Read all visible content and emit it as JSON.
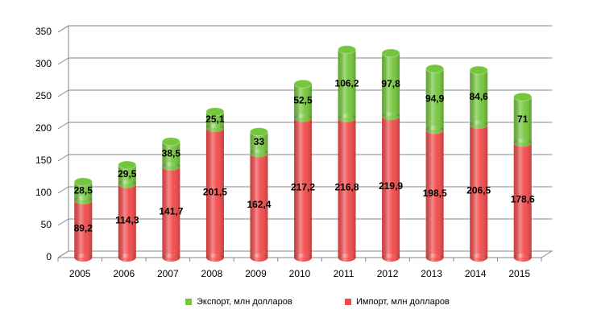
{
  "chart_data": {
    "type": "stacked-cylinder-bar",
    "categories": [
      "2005",
      "2006",
      "2007",
      "2008",
      "2009",
      "2010",
      "2011",
      "2012",
      "2013",
      "2014",
      "2015"
    ],
    "series": [
      {
        "name": "Импорт, млн долларов",
        "color": "#f24a4a",
        "values": [
          89.2,
          114.3,
          141.7,
          201.5,
          162.4,
          217.2,
          216.8,
          219.9,
          198.5,
          206.5,
          178.6
        ],
        "value_labels": [
          "89,2",
          "114,3",
          "141,7",
          "201,5",
          "162,4",
          "217,2",
          "216,8",
          "219,9",
          "198,5",
          "206,5",
          "178,6"
        ]
      },
      {
        "name": "Экспорт, млн долларов",
        "color": "#74c63c",
        "values": [
          28.5,
          29.5,
          38.5,
          25.1,
          33,
          52.5,
          106.2,
          97.8,
          94.9,
          84.6,
          71
        ],
        "value_labels": [
          "28,5",
          "29,5",
          "38,5",
          "25,1",
          "33",
          "52,5",
          "106,2",
          "97,8",
          "94,9",
          "84,6",
          "71"
        ]
      }
    ],
    "ylim": [
      0,
      350
    ],
    "yticks": [
      0,
      50,
      100,
      150,
      200,
      250,
      300,
      350
    ],
    "grid": true,
    "legend": "bottom"
  }
}
